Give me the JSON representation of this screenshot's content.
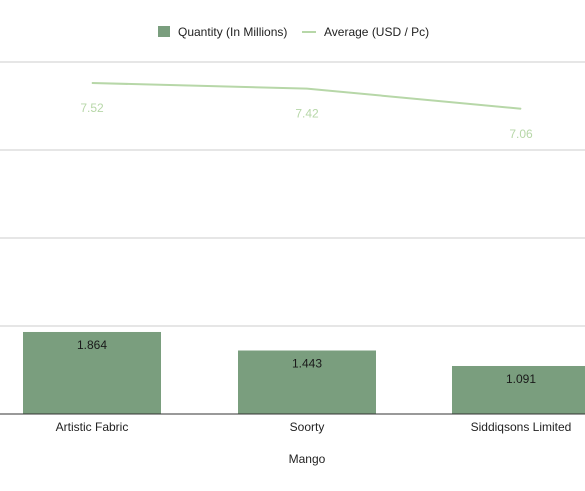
{
  "chart_data": {
    "type": "bar",
    "categories": [
      "Artistic Fabric",
      "Soorty",
      "Siddiqsons Limited"
    ],
    "xlabel": "Mango",
    "series": [
      {
        "name": "Quantity (In Millions)",
        "type": "bar",
        "values": [
          1.864,
          1.443,
          1.091
        ],
        "color": "#7a9e7e"
      },
      {
        "name": "Average (USD / Pc)",
        "type": "line",
        "values": [
          7.52,
          7.42,
          7.06
        ],
        "color": "#b7d7a8"
      }
    ],
    "grid": true,
    "legend_position": "top"
  },
  "colors": {
    "bar": "#7a9e7e",
    "line": "#b7d7a8",
    "line_label": "#b7d7a8",
    "grid": "#cccccc",
    "baseline": "#333333"
  }
}
